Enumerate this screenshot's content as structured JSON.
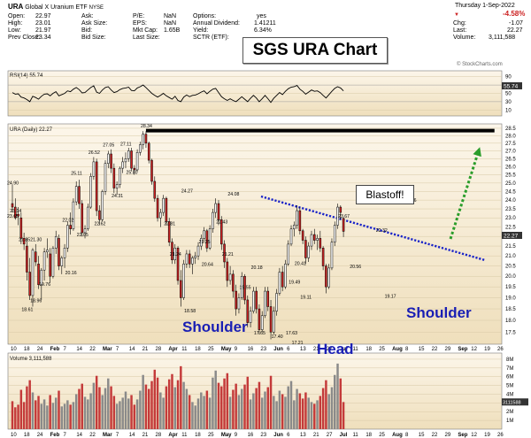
{
  "header": {
    "symbol": "URA",
    "name": "Global X Uranium ETF",
    "exchange": "NYSE",
    "date": "Thursday 1-Sep-2022",
    "change_pct": "-4.58%",
    "stats_left": [
      {
        "label": "Open:",
        "value": "22.97"
      },
      {
        "label": "High:",
        "value": "23.01"
      },
      {
        "label": "Low:",
        "value": "21.97"
      },
      {
        "label": "Prev Close:",
        "value": "23.34"
      }
    ],
    "stats_mid1": [
      {
        "label": "Ask:",
        "value": ""
      },
      {
        "label": "Ask Size:",
        "value": ""
      },
      {
        "label": "Bid:",
        "value": ""
      },
      {
        "label": "Bid Size:",
        "value": ""
      }
    ],
    "stats_mid2": [
      {
        "label": "P/E:",
        "value": "NaN"
      },
      {
        "label": "EPS:",
        "value": "NaN"
      },
      {
        "label": "Mkt Cap:",
        "value": "1.65B"
      },
      {
        "label": "Last Size:",
        "value": ""
      }
    ],
    "stats_mid3": [
      {
        "label": "Options:",
        "value": "yes"
      },
      {
        "label": "Annual Dividend:",
        "value": "1.41211"
      },
      {
        "label": "Yield:",
        "value": "6.34%"
      },
      {
        "label": "SCTR (ETF):",
        "value": ""
      }
    ],
    "stats_right": [
      {
        "label": "Chg:",
        "value": "-1.07"
      },
      {
        "label": "Last:",
        "value": "22.27"
      },
      {
        "label": "Volume:",
        "value": "3,111,588"
      }
    ]
  },
  "chart_title": "SGS URA Chart",
  "watermark": "© StockCharts.com",
  "rsi_label": "RSI(14) 55.74",
  "rsi_value_tag": "55.74",
  "price_label": "URA (Daily) 22.27",
  "last_price_tag": "22.27",
  "volume_label": "Volume 3,111,588",
  "annotations": {
    "left_shoulder": "Shoulder",
    "head": "Head",
    "right_shoulder": "Shoulder",
    "blastoff": "Blastoff!"
  },
  "colors": {
    "up": "#ffffff",
    "down": "#cc2222",
    "wick": "#000000",
    "panel_bg_top": "#fbf3e3",
    "panel_bg_bottom": "#f0e1bf",
    "neckline": "#1a24c8",
    "resistance": "#000000",
    "arrow": "#2a9d2a",
    "annotation": "#1a1fb4",
    "volume_up": "#8a8a8a",
    "volume_down": "#c43a3a"
  },
  "chart_data": {
    "type": "candlestick",
    "title": "URA (Daily) 22.27",
    "price_axis": {
      "ylim": [
        17.0,
        28.8
      ],
      "ticks": [
        17.5,
        18.0,
        18.5,
        19.0,
        19.5,
        20.0,
        20.5,
        21.0,
        21.5,
        22.0,
        22.5,
        23.0,
        23.5,
        24.0,
        24.5,
        25.0,
        25.5,
        26.0,
        26.5,
        27.0,
        27.5,
        28.0,
        28.5
      ],
      "scale": "log"
    },
    "rsi_axis": {
      "ticks": [
        10,
        30,
        50,
        70,
        90
      ]
    },
    "volume_axis": {
      "ticks": [
        "1M",
        "2M",
        "3M",
        "4M",
        "5M",
        "6M",
        "7M",
        "8M"
      ]
    },
    "x_axis_labels": [
      "10",
      "18",
      "24",
      "Feb",
      "7",
      "14",
      "22",
      "Mar",
      "7",
      "14",
      "21",
      "28",
      "Apr",
      "11",
      "18",
      "25",
      "May",
      "9",
      "16",
      "23",
      "Jun",
      "6",
      "13",
      "21",
      "27",
      "Jul",
      "11",
      "18",
      "25",
      "Aug",
      "8",
      "15",
      "22",
      "29",
      "Sep",
      "12",
      "19",
      "26"
    ],
    "price_labels": [
      "24.90",
      "23.14",
      "23.65",
      "21.85",
      "21.30",
      "18.61",
      "18.96",
      "19.76",
      "22.02",
      "20.16",
      "25.11",
      "22.05",
      "26.52",
      "22.62",
      "27.05",
      "24.31",
      "27.11",
      "25.80",
      "28.34",
      "22.81",
      "24.27",
      "21.24",
      "21.25",
      "20.64",
      "18.58",
      "22.43",
      "21.21",
      "24.08",
      "19.55",
      "20.18",
      "17.65",
      "17.40",
      "17.63",
      "17.21",
      "19.49",
      "19.11",
      "20.41",
      "23.67",
      "20.56",
      "22.32",
      "19.17",
      "23.76"
    ],
    "resistance_level": 28.34,
    "x_range": [
      0,
      167
    ],
    "candles": [
      [
        23.8,
        24.9,
        23.3,
        23.6
      ],
      [
        23.6,
        24.1,
        22.9,
        23.0
      ],
      [
        23.2,
        23.6,
        22.6,
        23.1
      ],
      [
        23.0,
        23.3,
        21.6,
        21.9
      ],
      [
        21.9,
        22.2,
        21.3,
        21.6
      ],
      [
        21.5,
        21.9,
        19.8,
        20.2
      ],
      [
        20.2,
        20.9,
        18.9,
        19.1
      ],
      [
        19.1,
        21.4,
        18.6,
        21.3
      ],
      [
        21.2,
        21.6,
        20.5,
        20.7
      ],
      [
        20.6,
        21.0,
        19.4,
        19.6
      ],
      [
        19.6,
        20.4,
        18.9,
        20.3
      ],
      [
        20.3,
        21.4,
        19.8,
        21.2
      ],
      [
        21.2,
        21.9,
        20.9,
        21.3
      ],
      [
        21.1,
        21.4,
        19.7,
        20.0
      ],
      [
        20.0,
        21.5,
        19.9,
        21.4
      ],
      [
        21.4,
        22.3,
        21.1,
        22.0
      ],
      [
        21.9,
        22.1,
        20.3,
        20.5
      ],
      [
        20.5,
        21.0,
        20.1,
        20.9
      ],
      [
        20.9,
        21.6,
        20.4,
        21.4
      ],
      [
        21.4,
        22.8,
        21.2,
        22.6
      ],
      [
        22.6,
        23.3,
        22.1,
        22.4
      ],
      [
        22.4,
        24.1,
        22.3,
        23.9
      ],
      [
        23.9,
        25.1,
        23.7,
        24.8
      ],
      [
        24.8,
        25.2,
        23.5,
        23.8
      ],
      [
        23.8,
        24.0,
        22.0,
        22.2
      ],
      [
        22.2,
        22.6,
        21.9,
        22.4
      ],
      [
        22.4,
        23.8,
        22.3,
        23.6
      ],
      [
        23.6,
        25.6,
        23.5,
        25.4
      ],
      [
        25.4,
        26.6,
        25.2,
        26.3
      ],
      [
        26.3,
        26.5,
        23.1,
        23.4
      ],
      [
        23.4,
        23.7,
        22.6,
        22.9
      ],
      [
        22.9,
        24.6,
        22.8,
        24.5
      ],
      [
        24.5,
        26.4,
        24.3,
        26.2
      ],
      [
        26.2,
        27.0,
        25.9,
        26.8
      ],
      [
        26.8,
        27.1,
        25.6,
        25.9
      ],
      [
        25.9,
        26.2,
        24.4,
        24.7
      ],
      [
        24.7,
        25.1,
        24.3,
        24.9
      ],
      [
        24.9,
        26.0,
        24.7,
        25.9
      ],
      [
        25.9,
        26.6,
        25.6,
        26.3
      ],
      [
        26.3,
        26.9,
        25.9,
        26.5
      ],
      [
        26.5,
        27.2,
        26.3,
        27.0
      ],
      [
        27.0,
        27.2,
        25.7,
        25.9
      ],
      [
        25.9,
        26.1,
        25.5,
        25.8
      ],
      [
        25.8,
        27.1,
        25.7,
        26.9
      ],
      [
        26.9,
        27.6,
        26.7,
        27.4
      ],
      [
        27.4,
        28.3,
        27.1,
        28.1
      ],
      [
        28.1,
        28.3,
        27.2,
        27.5
      ],
      [
        27.5,
        27.6,
        26.2,
        26.4
      ],
      [
        26.4,
        26.5,
        24.9,
        25.1
      ],
      [
        25.1,
        25.4,
        23.9,
        24.1
      ],
      [
        24.1,
        24.3,
        22.8,
        23.0
      ],
      [
        23.0,
        23.5,
        22.5,
        23.3
      ],
      [
        23.3,
        24.3,
        23.1,
        24.1
      ],
      [
        24.1,
        24.2,
        22.6,
        22.8
      ],
      [
        22.8,
        23.0,
        21.5,
        21.7
      ],
      [
        21.7,
        21.9,
        20.6,
        20.8
      ],
      [
        20.8,
        21.6,
        20.6,
        21.4
      ],
      [
        21.4,
        21.5,
        19.6,
        19.8
      ],
      [
        19.8,
        20.3,
        18.6,
        19.0
      ],
      [
        19.0,
        20.8,
        18.9,
        20.6
      ],
      [
        20.6,
        21.3,
        20.4,
        21.1
      ],
      [
        21.1,
        21.3,
        20.4,
        20.6
      ],
      [
        20.6,
        21.0,
        20.1,
        20.9
      ],
      [
        20.9,
        21.2,
        20.6,
        21.0
      ],
      [
        21.0,
        21.7,
        20.8,
        21.5
      ],
      [
        21.5,
        22.1,
        21.3,
        21.9
      ],
      [
        21.9,
        22.5,
        21.7,
        22.3
      ],
      [
        22.3,
        22.4,
        21.2,
        21.4
      ],
      [
        21.4,
        22.6,
        21.3,
        22.4
      ],
      [
        22.4,
        23.5,
        22.2,
        23.3
      ],
      [
        23.3,
        24.1,
        23.0,
        23.8
      ],
      [
        23.8,
        24.0,
        22.6,
        22.9
      ],
      [
        22.9,
        23.1,
        21.3,
        21.6
      ],
      [
        21.6,
        21.8,
        20.4,
        20.7
      ],
      [
        20.7,
        20.9,
        19.5,
        19.8
      ],
      [
        19.8,
        20.5,
        19.6,
        20.1
      ],
      [
        20.1,
        20.3,
        19.0,
        19.3
      ],
      [
        19.3,
        19.6,
        18.2,
        18.5
      ],
      [
        18.5,
        19.2,
        18.3,
        19.0
      ],
      [
        19.0,
        20.2,
        18.9,
        20.0
      ],
      [
        20.0,
        20.1,
        18.7,
        18.9
      ],
      [
        18.9,
        19.1,
        17.7,
        17.9
      ],
      [
        17.9,
        18.6,
        17.7,
        18.4
      ],
      [
        18.4,
        19.5,
        18.3,
        19.3
      ],
      [
        19.3,
        19.5,
        18.3,
        18.5
      ],
      [
        18.5,
        18.7,
        17.4,
        17.6
      ],
      [
        17.6,
        18.4,
        17.5,
        18.2
      ],
      [
        18.2,
        19.5,
        18.1,
        19.3
      ],
      [
        19.3,
        19.5,
        18.4,
        18.6
      ],
      [
        18.6,
        18.9,
        17.2,
        17.5
      ],
      [
        17.5,
        18.6,
        17.4,
        18.4
      ],
      [
        18.4,
        19.4,
        18.2,
        19.2
      ],
      [
        19.2,
        20.4,
        19.1,
        20.2
      ],
      [
        20.2,
        20.5,
        19.3,
        19.5
      ],
      [
        19.5,
        20.8,
        19.4,
        20.6
      ],
      [
        20.6,
        21.8,
        20.5,
        21.6
      ],
      [
        21.6,
        22.6,
        21.5,
        22.4
      ],
      [
        22.4,
        22.8,
        22.0,
        22.6
      ],
      [
        22.6,
        23.7,
        22.4,
        23.4
      ],
      [
        23.4,
        23.6,
        22.1,
        22.3
      ],
      [
        22.3,
        22.4,
        21.6,
        21.8
      ],
      [
        21.8,
        22.0,
        20.6,
        20.9
      ],
      [
        20.9,
        21.7,
        20.7,
        21.5
      ],
      [
        21.5,
        22.3,
        21.3,
        22.1
      ],
      [
        22.1,
        22.4,
        21.6,
        21.8
      ],
      [
        21.8,
        22.1,
        21.3,
        21.9
      ],
      [
        21.9,
        22.3,
        21.2,
        21.4
      ],
      [
        21.4,
        21.5,
        20.3,
        20.5
      ],
      [
        20.5,
        20.6,
        19.2,
        19.5
      ],
      [
        19.5,
        20.6,
        19.4,
        20.4
      ],
      [
        20.4,
        21.9,
        20.3,
        21.7
      ],
      [
        21.7,
        22.8,
        21.5,
        22.6
      ],
      [
        22.6,
        23.8,
        22.4,
        23.6
      ],
      [
        23.6,
        23.7,
        22.9,
        23.3
      ],
      [
        22.97,
        23.01,
        21.97,
        22.27
      ]
    ],
    "volumes_millions": [
      3.2,
      2.5,
      2.8,
      4.5,
      3.1,
      4.9,
      5.6,
      4.2,
      3.3,
      3.8,
      2.9,
      3.4,
      2.7,
      3.9,
      3.0,
      3.6,
      4.4,
      2.6,
      2.9,
      3.3,
      2.8,
      3.1,
      4.0,
      4.6,
      5.2,
      3.7,
      3.4,
      4.1,
      5.3,
      6.1,
      4.8,
      3.9,
      4.7,
      5.8,
      4.9,
      3.8,
      2.9,
      3.2,
      3.6,
      4.3,
      3.5,
      3.9,
      2.8,
      3.4,
      4.4,
      6.2,
      5.1,
      4.6,
      5.5,
      6.8,
      5.9,
      4.2,
      3.6,
      4.9,
      5.7,
      6.3,
      4.8,
      5.6,
      7.2,
      5.4,
      4.6,
      3.9,
      3.1,
      2.7,
      3.5,
      4.2,
      3.8,
      4.4,
      3.6,
      5.9,
      6.7,
      5.3,
      4.9,
      5.8,
      6.4,
      3.7,
      4.5,
      5.2,
      3.9,
      4.6,
      5.1,
      6.0,
      3.4,
      4.1,
      4.7,
      5.4,
      3.6,
      4.3,
      4.8,
      6.1,
      3.8,
      3.2,
      4.4,
      4.0,
      3.7,
      4.9,
      5.5,
      3.3,
      4.6,
      4.1,
      3.5,
      4.2,
      3.6,
      3.1,
      2.9,
      3.3,
      3.8,
      4.7,
      5.6,
      4.0,
      4.8,
      6.2,
      7.5,
      5.8,
      3.1
    ],
    "rsi_values": [
      52,
      48,
      49,
      41,
      39,
      35,
      30,
      43,
      40,
      36,
      43,
      48,
      49,
      44,
      50,
      54,
      44,
      47,
      50,
      56,
      54,
      60,
      64,
      59,
      51,
      52,
      58,
      64,
      68,
      53,
      50,
      58,
      64,
      66,
      58,
      52,
      54,
      59,
      62,
      63,
      65,
      57,
      56,
      63,
      66,
      70,
      64,
      57,
      50,
      45,
      41,
      45,
      50,
      44,
      40,
      36,
      43,
      33,
      30,
      41,
      46,
      42,
      45,
      46,
      49,
      53,
      56,
      49,
      55,
      60,
      62,
      52,
      42,
      37,
      33,
      37,
      33,
      30,
      36,
      42,
      36,
      30,
      38,
      45,
      39,
      30,
      37,
      45,
      37,
      28,
      38,
      45,
      52,
      47,
      55,
      61,
      65,
      66,
      69,
      60,
      55,
      48,
      53,
      58,
      55,
      56,
      52,
      45,
      39,
      47,
      55,
      62,
      66,
      63,
      56
    ]
  }
}
